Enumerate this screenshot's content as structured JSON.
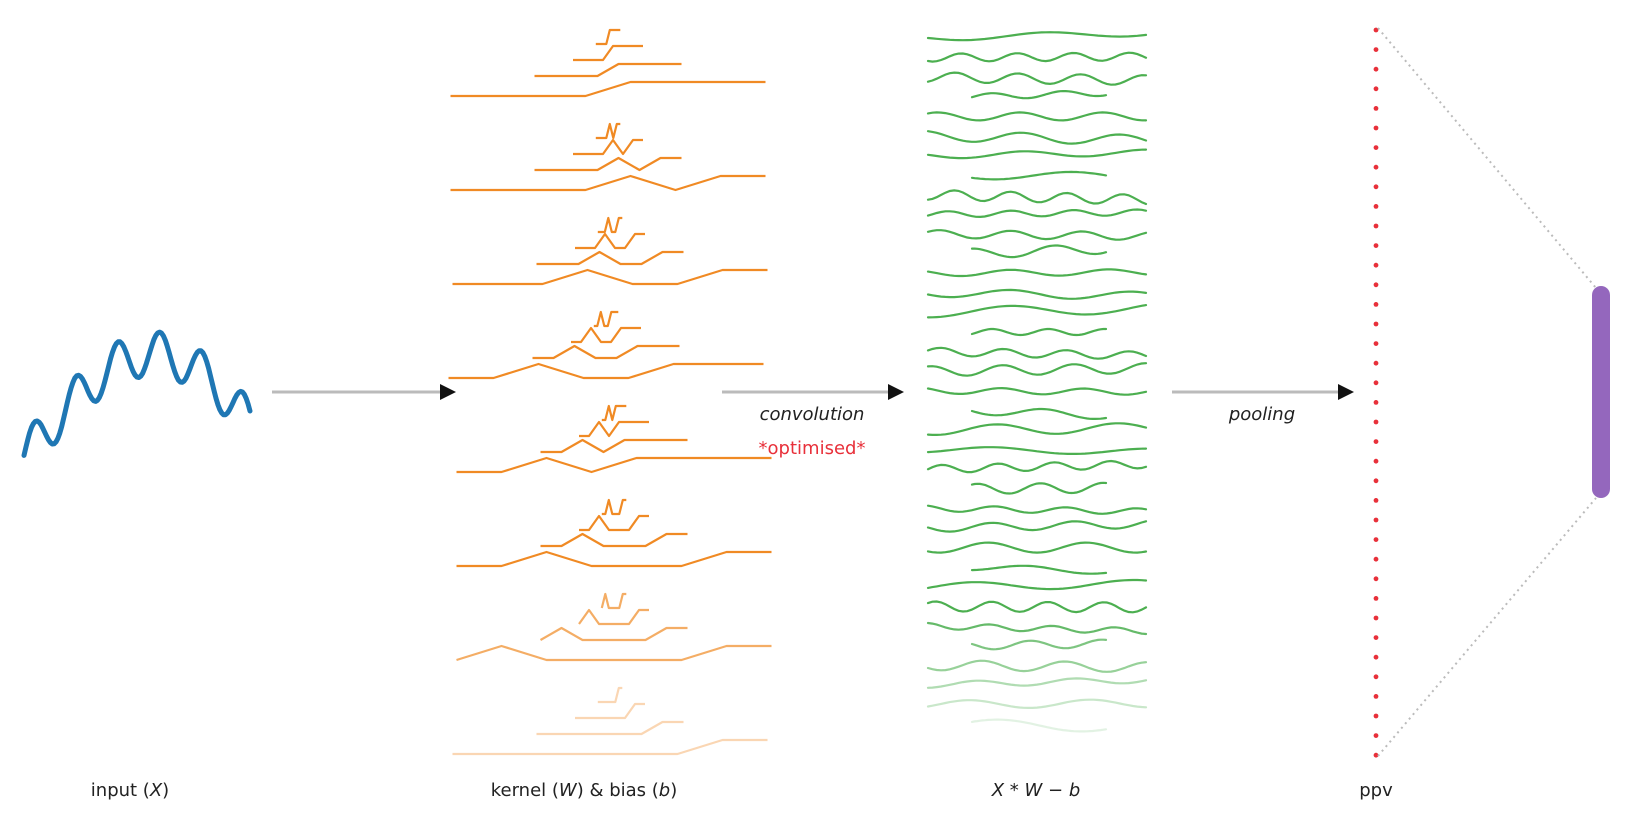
{
  "labels": {
    "input_pre": "input (",
    "input_var": "X",
    "input_post": ")",
    "kernel_pre": "kernel (",
    "kernel_w": "W",
    "kernel_mid": ") & bias (",
    "kernel_b": "b",
    "kernel_post": ")",
    "conv_output": "X * W − b",
    "ppv": "ppv",
    "convolution": "convolution",
    "optimised": "*optimised*",
    "pooling": "pooling"
  },
  "colors": {
    "input": "#1f77b4",
    "kernel": "#f08a24",
    "conv": "#4caf50",
    "ppv_dots": "#e8303a",
    "feature_bar": "#9467bd",
    "arrow": "#bbbbbb",
    "arrowhead": "#111111",
    "dotted_line": "#bbbbbb"
  }
}
